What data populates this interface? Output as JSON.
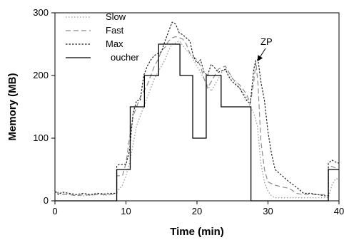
{
  "chart_data": {
    "type": "line",
    "xlabel": "Time (min)",
    "ylabel": "Memory (MB)",
    "xlim": [
      0,
      40
    ],
    "ylim": [
      0,
      300
    ],
    "xticks": [
      0,
      10,
      20,
      30,
      40
    ],
    "yticks": [
      0,
      100,
      200,
      300
    ],
    "grid": false,
    "legend_position": "top-left",
    "annotation": {
      "text": "ZP",
      "x": 28.4,
      "y": 220
    },
    "series": [
      {
        "name": "Slow",
        "style": "dotted",
        "color": "#9a9a9a",
        "points": [
          [
            0,
            15
          ],
          [
            1,
            12
          ],
          [
            2,
            10
          ],
          [
            3,
            9
          ],
          [
            4,
            8
          ],
          [
            5,
            9
          ],
          [
            6,
            10
          ],
          [
            7,
            9
          ],
          [
            8,
            10
          ],
          [
            8.5,
            12
          ],
          [
            9,
            18
          ],
          [
            9.5,
            25
          ],
          [
            10,
            40
          ],
          [
            10.5,
            60
          ],
          [
            11,
            90
          ],
          [
            11.5,
            120
          ],
          [
            12,
            135
          ],
          [
            12.5,
            150
          ],
          [
            13,
            165
          ],
          [
            13.5,
            180
          ],
          [
            14,
            195
          ],
          [
            15,
            215
          ],
          [
            15.5,
            225
          ],
          [
            16,
            240
          ],
          [
            16.5,
            250
          ],
          [
            17,
            252
          ],
          [
            17.5,
            255
          ],
          [
            18,
            248
          ],
          [
            18.5,
            240
          ],
          [
            19,
            235
          ],
          [
            19.5,
            225
          ],
          [
            20,
            215
          ],
          [
            20.5,
            205
          ],
          [
            21,
            195
          ],
          [
            21.5,
            185
          ],
          [
            22,
            175
          ],
          [
            22.5,
            185
          ],
          [
            23,
            195
          ],
          [
            23.5,
            205
          ],
          [
            24,
            210
          ],
          [
            24.5,
            205
          ],
          [
            25,
            195
          ],
          [
            26,
            180
          ],
          [
            27,
            165
          ],
          [
            27.5,
            150
          ],
          [
            28,
            140
          ],
          [
            28.5,
            120
          ],
          [
            29,
            60
          ],
          [
            29.5,
            30
          ],
          [
            30,
            15
          ],
          [
            30.5,
            8
          ],
          [
            31,
            5
          ],
          [
            32,
            5
          ],
          [
            33,
            5
          ],
          [
            34,
            5
          ],
          [
            35,
            5
          ],
          [
            36,
            5
          ],
          [
            37,
            5
          ],
          [
            38,
            5
          ],
          [
            38.5,
            5
          ],
          [
            39,
            25
          ],
          [
            39.5,
            35
          ],
          [
            40,
            35
          ]
        ]
      },
      {
        "name": "Fast",
        "style": "dashed",
        "color": "#8c8c8c",
        "points": [
          [
            0,
            15
          ],
          [
            1,
            10
          ],
          [
            2,
            10
          ],
          [
            3,
            8
          ],
          [
            4,
            10
          ],
          [
            5,
            9
          ],
          [
            6,
            10
          ],
          [
            7,
            10
          ],
          [
            8,
            10
          ],
          [
            8.7,
            12
          ],
          [
            8.7,
            40
          ],
          [
            9.5,
            40
          ],
          [
            10,
            60
          ],
          [
            10.5,
            100
          ],
          [
            11,
            135
          ],
          [
            11.5,
            150
          ],
          [
            12,
            165
          ],
          [
            13,
            185
          ],
          [
            13.5,
            200
          ],
          [
            14,
            215
          ],
          [
            14.5,
            225
          ],
          [
            15,
            240
          ],
          [
            15.5,
            245
          ],
          [
            16,
            255
          ],
          [
            16.5,
            260
          ],
          [
            17,
            262
          ],
          [
            18,
            258
          ],
          [
            18.5,
            250
          ],
          [
            19,
            235
          ],
          [
            20,
            225
          ],
          [
            20.5,
            215
          ],
          [
            21,
            195
          ],
          [
            21.5,
            180
          ],
          [
            22,
            190
          ],
          [
            22.5,
            200
          ],
          [
            23,
            210
          ],
          [
            24,
            215
          ],
          [
            24.5,
            205
          ],
          [
            25,
            195
          ],
          [
            26,
            185
          ],
          [
            27,
            170
          ],
          [
            27.5,
            155
          ],
          [
            28,
            190
          ],
          [
            28.3,
            222
          ],
          [
            28.6,
            185
          ],
          [
            29,
            95
          ],
          [
            29.5,
            50
          ],
          [
            30,
            30
          ],
          [
            31,
            25
          ],
          [
            32,
            22
          ],
          [
            33,
            20
          ],
          [
            34,
            12
          ],
          [
            35,
            10
          ],
          [
            36,
            10
          ],
          [
            37,
            10
          ],
          [
            38,
            10
          ],
          [
            38.5,
            10
          ],
          [
            38.5,
            55
          ],
          [
            39,
            55
          ],
          [
            40,
            50
          ]
        ]
      },
      {
        "name": "Max",
        "style": "dashed-fine",
        "color": "#222222",
        "points": [
          [
            0,
            15
          ],
          [
            0.5,
            10
          ],
          [
            1,
            14
          ],
          [
            2,
            12
          ],
          [
            3,
            10
          ],
          [
            4,
            12
          ],
          [
            5,
            10
          ],
          [
            6,
            12
          ],
          [
            7,
            11
          ],
          [
            8,
            12
          ],
          [
            8.7,
            12
          ],
          [
            8.7,
            55
          ],
          [
            9,
            58
          ],
          [
            10,
            58
          ],
          [
            10.5,
            80
          ],
          [
            11,
            140
          ],
          [
            11.5,
            160
          ],
          [
            12,
            160
          ],
          [
            12.5,
            200
          ],
          [
            13,
            215
          ],
          [
            13.5,
            225
          ],
          [
            14,
            232
          ],
          [
            15,
            238
          ],
          [
            15.5,
            255
          ],
          [
            16,
            270
          ],
          [
            16.5,
            285
          ],
          [
            17,
            282
          ],
          [
            17.5,
            268
          ],
          [
            18,
            265
          ],
          [
            19,
            255
          ],
          [
            19.5,
            230
          ],
          [
            20,
            220
          ],
          [
            20.5,
            225
          ],
          [
            21,
            205
          ],
          [
            21.5,
            200
          ],
          [
            22,
            218
          ],
          [
            22.5,
            212
          ],
          [
            23,
            205
          ],
          [
            24,
            210
          ],
          [
            24.5,
            198
          ],
          [
            25,
            190
          ],
          [
            26,
            180
          ],
          [
            27,
            160
          ],
          [
            27.5,
            155
          ],
          [
            28,
            210
          ],
          [
            28.3,
            225
          ],
          [
            28.6,
            225
          ],
          [
            29,
            190
          ],
          [
            29.5,
            160
          ],
          [
            30,
            110
          ],
          [
            30.5,
            75
          ],
          [
            31,
            50
          ],
          [
            32,
            40
          ],
          [
            33,
            30
          ],
          [
            34,
            22
          ],
          [
            35,
            12
          ],
          [
            36,
            12
          ],
          [
            37,
            10
          ],
          [
            38,
            8
          ],
          [
            38.5,
            8
          ],
          [
            38.5,
            60
          ],
          [
            39,
            65
          ],
          [
            39.5,
            62
          ],
          [
            40,
            60
          ]
        ]
      },
      {
        "name": "oucher",
        "style": "solid",
        "color": "#000000",
        "points": [
          [
            0,
            0
          ],
          [
            8.7,
            0
          ],
          [
            8.7,
            50
          ],
          [
            10.6,
            50
          ],
          [
            10.6,
            150
          ],
          [
            12.6,
            150
          ],
          [
            12.6,
            200
          ],
          [
            14.6,
            200
          ],
          [
            14.6,
            250
          ],
          [
            17.6,
            250
          ],
          [
            17.6,
            200
          ],
          [
            19.4,
            200
          ],
          [
            19.4,
            100
          ],
          [
            21.3,
            100
          ],
          [
            21.3,
            200
          ],
          [
            23.4,
            200
          ],
          [
            23.4,
            150
          ],
          [
            27.6,
            150
          ],
          [
            27.6,
            0
          ],
          [
            38.5,
            0
          ],
          [
            38.5,
            50
          ],
          [
            40,
            50
          ]
        ]
      }
    ]
  }
}
